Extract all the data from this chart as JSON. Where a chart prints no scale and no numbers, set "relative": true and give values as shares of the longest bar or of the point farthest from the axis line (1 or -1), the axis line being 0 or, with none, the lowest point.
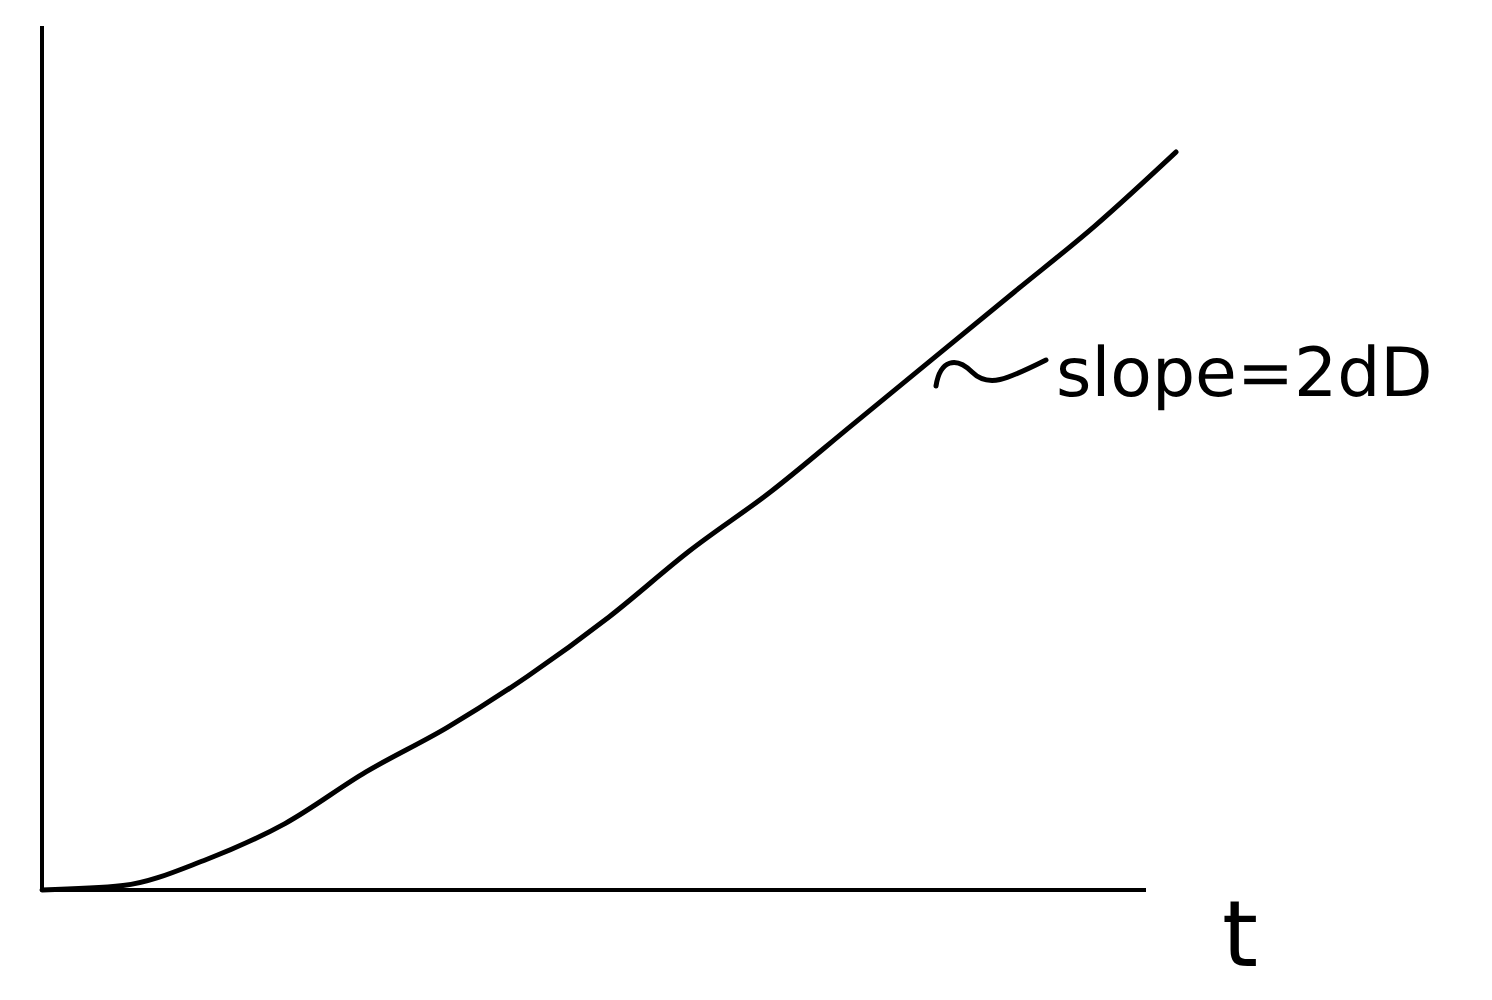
{
  "chart_data": {
    "type": "line",
    "relative": true,
    "xlabel": "t",
    "annotations": [
      "slope=2dD"
    ],
    "categories": [
      null,
      null,
      null,
      null,
      null,
      null,
      null,
      null,
      null,
      null,
      null,
      null,
      null,
      null,
      null
    ],
    "series": [
      {
        "color": "#000000",
        "values": [
          0,
          0.006,
          0.04,
          0.09,
          0.16,
          0.22,
          0.29,
          0.37,
          0.46,
          0.54,
          0.63,
          0.72,
          0.81,
          0.9,
          1
        ]
      }
    ]
  }
}
